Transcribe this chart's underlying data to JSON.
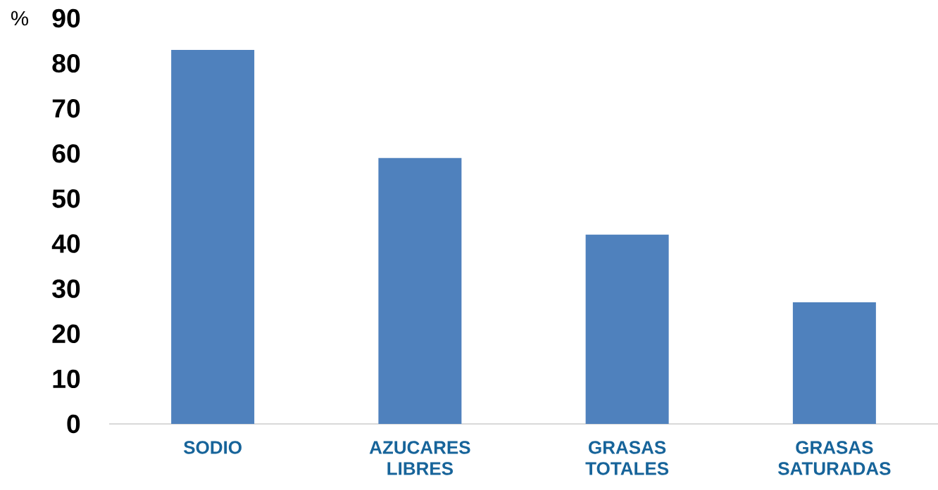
{
  "chart_data": {
    "type": "bar",
    "ylabel": "%",
    "categories": [
      "SODIO",
      "AZUCARES LIBRES",
      "GRASAS TOTALES",
      "GRASAS SATURADAS"
    ],
    "values": [
      83,
      59,
      42,
      27
    ],
    "color": "#4f81bd",
    "ylim": [
      0,
      90
    ],
    "yticks": [
      0,
      10,
      20,
      30,
      40,
      50,
      60,
      70,
      80,
      90
    ]
  }
}
